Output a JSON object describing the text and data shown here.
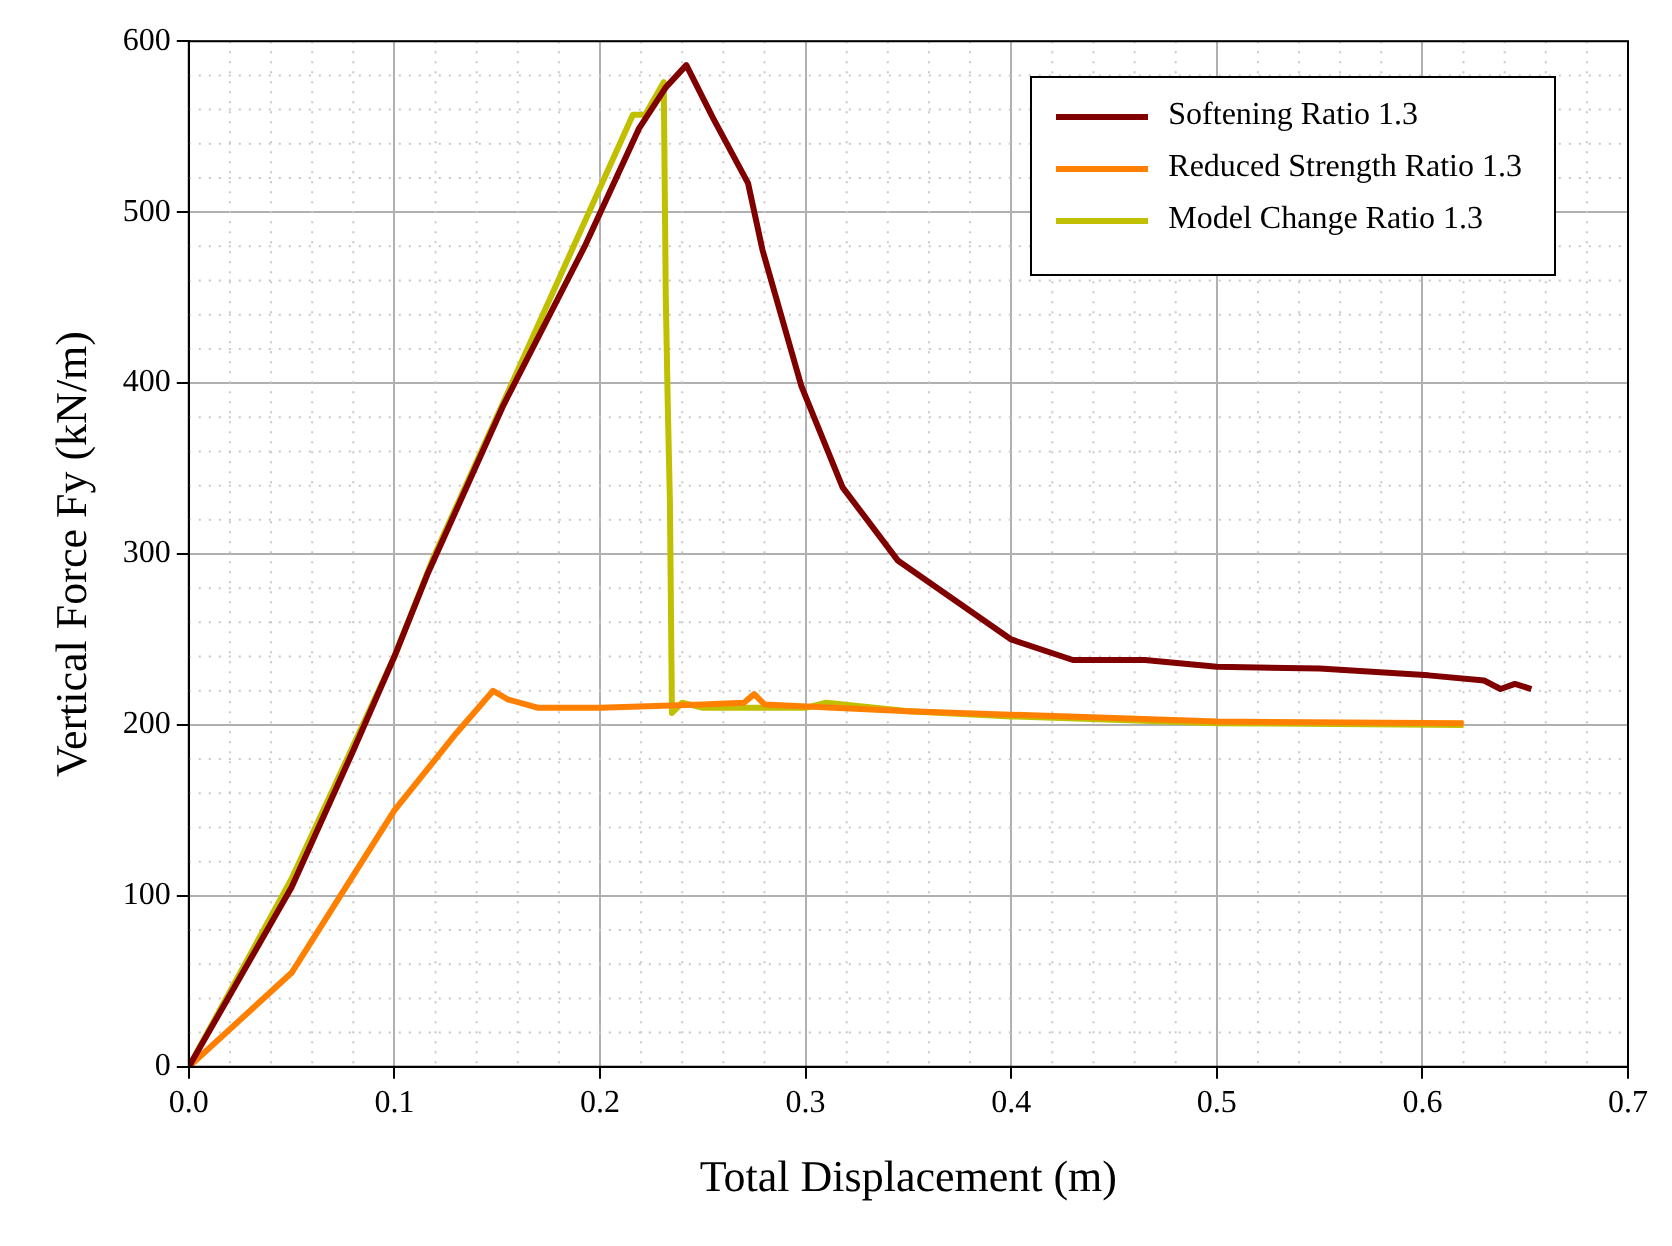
{
  "chart_data": {
    "type": "line",
    "xlabel": "Total Displacement (m)",
    "ylabel": "Vertical Force Fy (kN/m)",
    "xlim": [
      0,
      0.7
    ],
    "xticks": [
      {
        "value": 0,
        "label": "0.0"
      },
      0.1,
      0.2,
      0.3,
      0.4,
      0.5,
      0.6,
      0.7
    ],
    "ylim": [
      0,
      600
    ],
    "yticks": [
      0,
      100,
      200,
      300,
      400,
      500,
      600
    ],
    "grid": true,
    "legend": "top right",
    "marker": "none",
    "line_style": "solid",
    "series": [
      {
        "name": "Softening Ratio 1.3",
        "color": "#800000",
        "x": [
          0,
          0.05,
          0.08,
          0.1,
          0.116,
          0.153,
          0.193,
          0.219,
          0.232,
          0.242,
          0.255,
          0.272,
          0.279,
          0.298,
          0.318,
          0.345,
          0.4,
          0.43,
          0.465,
          0.5,
          0.55,
          0.603,
          0.63,
          0.638,
          0.645,
          0.653
        ],
        "values": [
          0,
          105,
          185,
          240,
          288,
          387,
          481,
          549,
          573,
          586,
          555,
          517,
          478,
          398,
          339,
          296,
          250,
          238,
          238,
          234,
          233,
          229,
          226,
          221,
          224,
          221
        ]
      },
      {
        "name": "Reduced Strength Ratio 1.3",
        "color": "#ff8000",
        "x": [
          0,
          0.05,
          0.1,
          0.13,
          0.148,
          0.155,
          0.17,
          0.2,
          0.25,
          0.27,
          0.275,
          0.28,
          0.35,
          0.45,
          0.5,
          0.62
        ],
        "values": [
          0,
          55,
          150,
          195,
          220,
          215,
          210,
          210,
          212,
          213,
          218,
          212,
          208,
          204,
          202,
          201
        ]
      },
      {
        "name": "Model Change Ratio 1.3",
        "color": "#c0c000",
        "x": [
          0,
          0.05,
          0.1,
          0.119,
          0.216,
          0.222,
          0.231,
          0.232,
          0.233,
          0.234,
          0.235,
          0.24,
          0.25,
          0.3,
          0.31,
          0.35,
          0.4,
          0.5,
          0.62
        ],
        "values": [
          0,
          110,
          240,
          298,
          557,
          557,
          576,
          450,
          385,
          331,
          207,
          213,
          210,
          210,
          213,
          208,
          205,
          201,
          200
        ]
      }
    ]
  }
}
